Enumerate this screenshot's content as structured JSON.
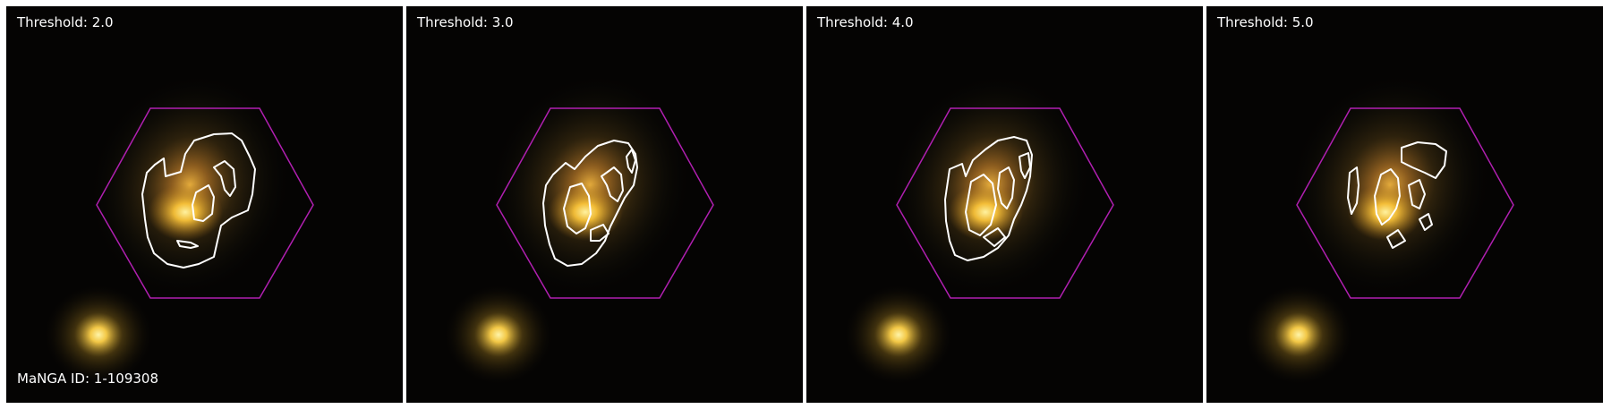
{
  "figure": {
    "panels": [
      {
        "threshold_label": "Threshold: 2.0"
      },
      {
        "threshold_label": "Threshold: 3.0"
      },
      {
        "threshold_label": "Threshold: 4.0"
      },
      {
        "threshold_label": "Threshold: 5.0"
      }
    ],
    "galaxy_id_label": "MaNGA ID: 1-109308"
  },
  "colors": {
    "background": "#050403",
    "hexagon": "#b01fb0",
    "contour": "#ffffff",
    "galaxy_core": "#ffd24a",
    "label_text": "#ffffff"
  }
}
